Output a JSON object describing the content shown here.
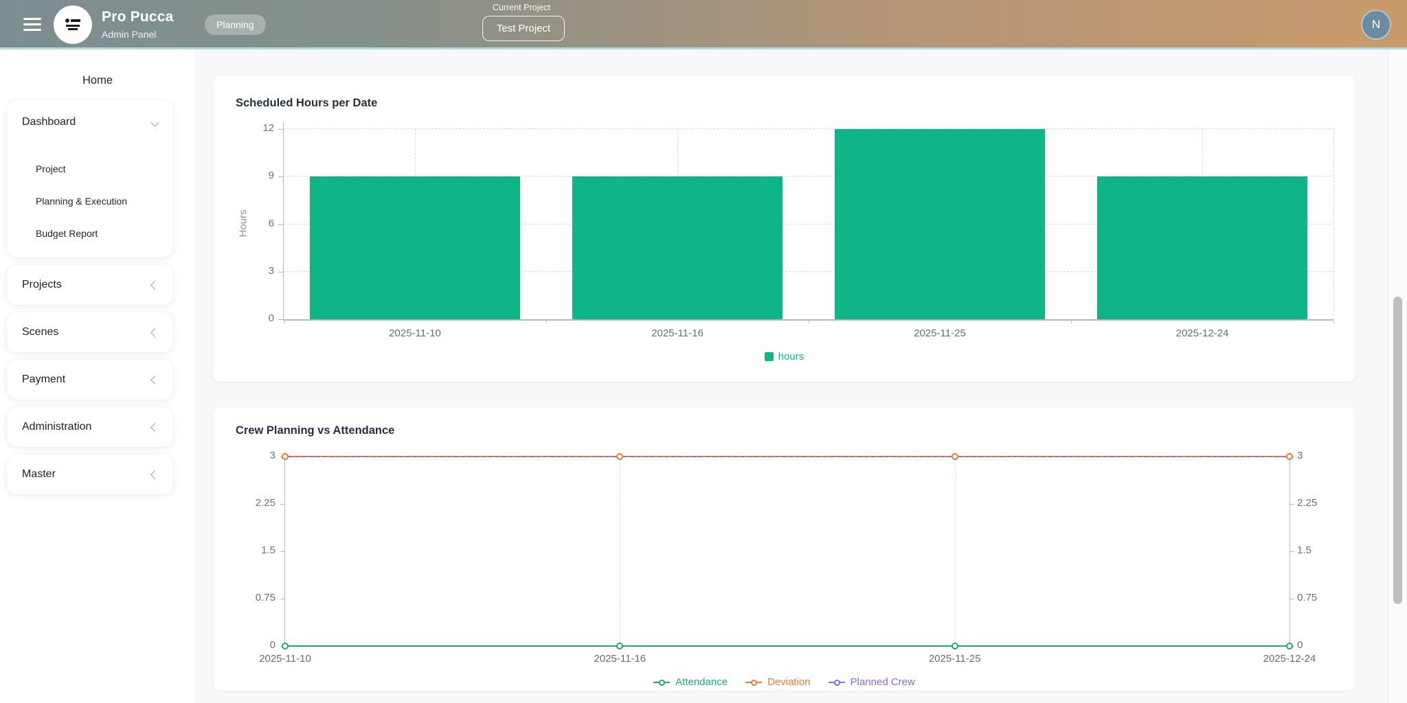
{
  "header": {
    "app_name": "Pro Pucca",
    "app_subtitle": "Admin Panel",
    "badge": "Planning",
    "current_project_label": "Current Project",
    "current_project_value": "Test Project",
    "avatar_initial": "N"
  },
  "sidebar": {
    "heading": "Home",
    "dashboard": {
      "label": "Dashboard",
      "expanded": true,
      "items": [
        {
          "label": "Project"
        },
        {
          "label": "Planning & Execution"
        },
        {
          "label": "Budget Report"
        }
      ]
    },
    "sections": [
      {
        "label": "Projects"
      },
      {
        "label": "Scenes"
      },
      {
        "label": "Payment"
      },
      {
        "label": "Administration"
      },
      {
        "label": "Master"
      }
    ]
  },
  "chart_data": [
    {
      "type": "bar",
      "title": "Scheduled Hours per Date",
      "categories": [
        "2025-11-10",
        "2025-11-16",
        "2025-11-25",
        "2025-12-24"
      ],
      "series": [
        {
          "name": "hours",
          "values": [
            9,
            9,
            12,
            9
          ],
          "color": "#10b585"
        }
      ],
      "xlabel": "",
      "ylabel": "Hours",
      "ylim": [
        0,
        12
      ],
      "yticks": [
        0,
        3,
        6,
        9,
        12
      ],
      "grid": true,
      "legend_position": "bottom"
    },
    {
      "type": "line",
      "title": "Crew Planning vs Attendance",
      "categories": [
        "2025-11-10",
        "2025-11-16",
        "2025-11-25",
        "2025-12-24"
      ],
      "series": [
        {
          "name": "Attendance",
          "values": [
            0,
            0,
            0,
            0
          ],
          "color": "#23a473",
          "style": "solid"
        },
        {
          "name": "Deviation",
          "values": [
            3,
            3,
            3,
            3
          ],
          "color": "#f4792a",
          "style": "dashed"
        },
        {
          "name": "Planned Crew",
          "values": [
            3,
            3,
            3,
            3
          ],
          "color": "#8a68e8",
          "style": "solid"
        }
      ],
      "xlabel": "",
      "ylabel": "",
      "ylim": [
        0,
        3
      ],
      "yticks": [
        0,
        0.75,
        1.5,
        2.25,
        3
      ],
      "dual_axis": true,
      "grid": true,
      "legend_position": "bottom"
    }
  ],
  "colors": {
    "header_gradient_left": "#7d8e91",
    "header_gradient_right": "#c99a6a",
    "header_underline": "#a9dcda",
    "avatar_bg": "#6d8b9f",
    "page_bg": "#f7f8fa",
    "bar_green": "#10b585",
    "attendance_green": "#23a473",
    "deviation_orange": "#f4792a",
    "planned_purple": "#8a68e8",
    "tick_text": "#6a7077",
    "axis_line": "#b3b6bb"
  }
}
